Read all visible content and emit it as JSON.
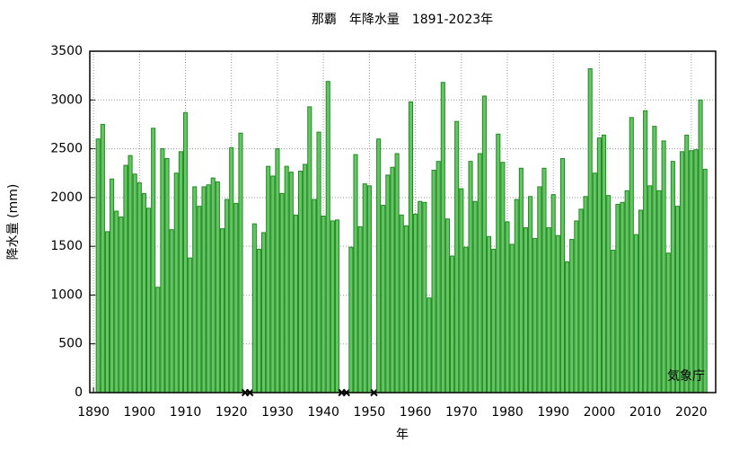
{
  "chart_data": {
    "type": "bar",
    "title": "那覇　年降水量　1891-2023年",
    "xlabel": "年",
    "ylabel": "降水量 (mm)",
    "annotation": "気象庁",
    "color": "#66c466",
    "edgecolor": "#1e8c1e",
    "grid": true,
    "x": [
      1891,
      1892,
      1893,
      1894,
      1895,
      1896,
      1897,
      1898,
      1899,
      1900,
      1901,
      1902,
      1903,
      1904,
      1905,
      1906,
      1907,
      1908,
      1909,
      1910,
      1911,
      1912,
      1913,
      1914,
      1915,
      1916,
      1917,
      1918,
      1919,
      1920,
      1921,
      1922,
      1923,
      1924,
      1925,
      1926,
      1927,
      1928,
      1929,
      1930,
      1931,
      1932,
      1933,
      1934,
      1935,
      1936,
      1937,
      1938,
      1939,
      1940,
      1941,
      1942,
      1943,
      1944,
      1945,
      1946,
      1947,
      1948,
      1949,
      1950,
      1951,
      1952,
      1953,
      1954,
      1955,
      1956,
      1957,
      1958,
      1959,
      1960,
      1961,
      1962,
      1963,
      1964,
      1965,
      1966,
      1967,
      1968,
      1969,
      1970,
      1971,
      1972,
      1973,
      1974,
      1975,
      1976,
      1977,
      1978,
      1979,
      1980,
      1981,
      1982,
      1983,
      1984,
      1985,
      1986,
      1987,
      1988,
      1989,
      1990,
      1991,
      1992,
      1993,
      1994,
      1995,
      1996,
      1997,
      1998,
      1999,
      2000,
      2001,
      2002,
      2003,
      2004,
      2005,
      2006,
      2007,
      2008,
      2009,
      2010,
      2011,
      2012,
      2013,
      2014,
      2015,
      2016,
      2017,
      2018,
      2019,
      2020,
      2021,
      2022,
      2023
    ],
    "values": [
      2600,
      2750,
      1650,
      2190,
      1860,
      1800,
      2330,
      2430,
      2240,
      2150,
      2040,
      1890,
      2710,
      1080,
      2500,
      2400,
      1670,
      2250,
      2470,
      2870,
      1380,
      2110,
      1910,
      2110,
      2130,
      2200,
      2160,
      1680,
      1980,
      2510,
      1940,
      2660,
      null,
      null,
      1730,
      1470,
      1640,
      2320,
      2220,
      2500,
      2040,
      2320,
      2260,
      1820,
      2270,
      2340,
      2930,
      1980,
      2670,
      1810,
      3190,
      1760,
      1770,
      null,
      null,
      1490,
      2440,
      1700,
      2140,
      2120,
      null,
      2600,
      1920,
      2230,
      2310,
      2450,
      1820,
      1710,
      2980,
      1830,
      1960,
      1950,
      970,
      2280,
      2370,
      3180,
      1780,
      1400,
      2780,
      2090,
      1490,
      2370,
      1960,
      2450,
      3040,
      1600,
      1470,
      2650,
      2360,
      1750,
      1520,
      1980,
      2300,
      1690,
      2010,
      1580,
      2110,
      2300,
      1690,
      2030,
      1610,
      2400,
      1340,
      1570,
      1760,
      1880,
      2010,
      3320,
      2250,
      2610,
      2640,
      2020,
      1460,
      1930,
      1950,
      2070,
      2820,
      1620,
      1870,
      2890,
      2120,
      2730,
      2070,
      2580,
      1430,
      2370,
      1910,
      2470,
      2640,
      2480,
      2490,
      3000,
      2290
    ],
    "xlim": [
      1889.2,
      2025.3
    ],
    "xticks": [
      1890,
      1900,
      1910,
      1920,
      1930,
      1940,
      1950,
      1960,
      1970,
      1980,
      1990,
      2000,
      2010,
      2020
    ],
    "ylim": [
      0,
      3500
    ],
    "yticks": [
      0,
      500,
      1000,
      1500,
      2000,
      2500,
      3000,
      3500
    ]
  }
}
